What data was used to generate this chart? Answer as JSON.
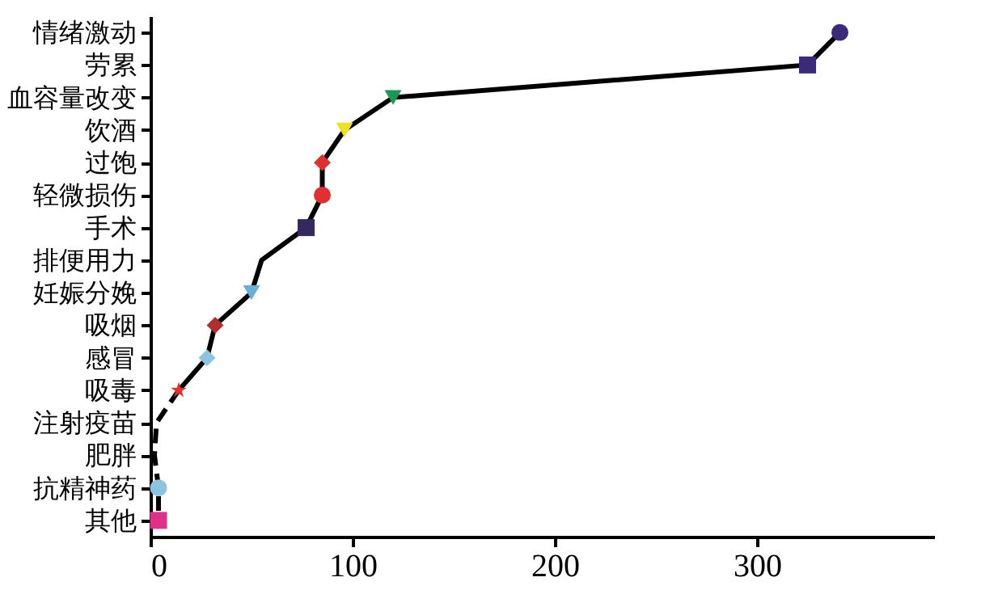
{
  "chart_data": {
    "type": "line",
    "orientation": "horizontal",
    "categories": [
      "情绪激动",
      "劳累",
      "血容量改变",
      "饮酒",
      "过饱",
      "轻微损伤",
      "手术",
      "排便用力",
      "妊娠分娩",
      "吸烟",
      "感冒",
      "吸毒",
      "注射疫苗",
      "肥胖",
      "抗精神药",
      "其他"
    ],
    "xlim": [
      0,
      388
    ],
    "xticks": [
      0,
      100,
      200,
      300
    ],
    "grid": false,
    "series": [
      {
        "color": "#000000",
        "line_style": "solid",
        "values": [
          341,
          325,
          120,
          96,
          85,
          85,
          77,
          55,
          50,
          32,
          28,
          14,
          null,
          null,
          null,
          null
        ]
      },
      {
        "type": "line",
        "color": "#000000",
        "line_style": "dashed",
        "values": [
          null,
          null,
          null,
          null,
          null,
          null,
          null,
          null,
          null,
          null,
          null,
          14,
          3,
          2,
          4,
          4
        ]
      },
      {
        "type": "scatter",
        "marker": "circle",
        "colors": [
          "#3b2a7a",
          null,
          null,
          null,
          null,
          "#e03030",
          null,
          null,
          null,
          null,
          null,
          null,
          null,
          null,
          "#8cc4e0",
          null
        ],
        "values": [
          341,
          null,
          null,
          null,
          null,
          85,
          null,
          null,
          null,
          null,
          null,
          null,
          null,
          null,
          4,
          null
        ]
      },
      {
        "type": "scatter",
        "marker": "square",
        "colors": [
          null,
          "#3b2a7a",
          null,
          null,
          null,
          null,
          "#35285e",
          null,
          null,
          null,
          null,
          null,
          null,
          null,
          null,
          "#e0308a"
        ],
        "values": [
          null,
          325,
          null,
          null,
          null,
          null,
          77,
          null,
          null,
          null,
          null,
          null,
          null,
          null,
          null,
          4
        ]
      },
      {
        "type": "scatter",
        "marker": "triangle",
        "colors": [
          null,
          null,
          "#1a9a50",
          "#f0e020",
          null,
          null,
          null,
          null,
          "#6ab0d8",
          null,
          null,
          null,
          null,
          null,
          null,
          null
        ],
        "values": [
          null,
          null,
          120,
          96,
          null,
          null,
          null,
          null,
          50,
          null,
          null,
          null,
          null,
          null,
          null,
          null
        ]
      },
      {
        "type": "scatter",
        "marker": "diamond",
        "colors": [
          null,
          null,
          null,
          null,
          "#e03030",
          null,
          null,
          null,
          null,
          "#b03030",
          "#8cc4e0",
          null,
          null,
          null,
          null,
          null
        ],
        "values": [
          null,
          null,
          null,
          null,
          85,
          null,
          null,
          null,
          null,
          32,
          28,
          null,
          null,
          null,
          null,
          null
        ]
      },
      {
        "type": "scatter",
        "marker": "star",
        "colors": [
          null,
          null,
          null,
          null,
          null,
          null,
          null,
          null,
          null,
          null,
          null,
          "#e03030",
          null,
          null,
          null,
          null
        ],
        "values": [
          null,
          null,
          null,
          null,
          null,
          null,
          null,
          null,
          null,
          null,
          null,
          14,
          null,
          null,
          null,
          null
        ]
      }
    ]
  }
}
